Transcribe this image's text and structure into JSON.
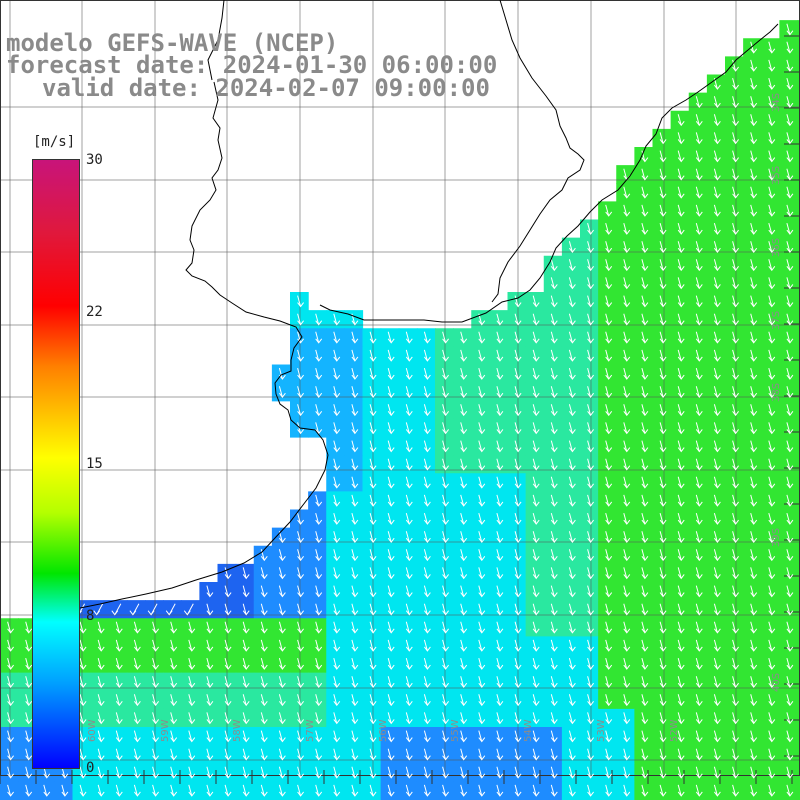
{
  "title": {
    "model": "modelo GEFS-WAVE (NCEP)",
    "forecast": "forecast date: 2024-01-30 06:00:00",
    "valid": "valid date: 2024-02-07 09:00:00"
  },
  "colorbar": {
    "unit": "[m/s]",
    "ticks": [
      "30",
      "22",
      "15",
      "8",
      "0"
    ],
    "colors": [
      "#c8147a",
      "#e0183c",
      "#ff0000",
      "#ff8000",
      "#ffff00",
      "#b4ff00",
      "#00e600",
      "#00ffff",
      "#00a0ff",
      "#0000ff"
    ]
  },
  "grid": {
    "lon_labels": [
      "60W",
      "59W",
      "58W",
      "57W",
      "56W",
      "55W",
      "54W",
      "53W",
      "52W"
    ],
    "lat_labels": [
      "34S",
      "35S",
      "36S",
      "37S",
      "38S",
      "39S",
      "40S"
    ]
  },
  "field_colors": {
    "dark_blue": "#1e64f0",
    "blue": "#1e8cff",
    "light_blue": "#14b4ff",
    "cyan": "#00e6f0",
    "teal_green": "#2ae8a0",
    "green": "#32e632",
    "bright_green": "#50e614"
  },
  "arrow_color": "#ffffff",
  "coastline_color": "#000000"
}
